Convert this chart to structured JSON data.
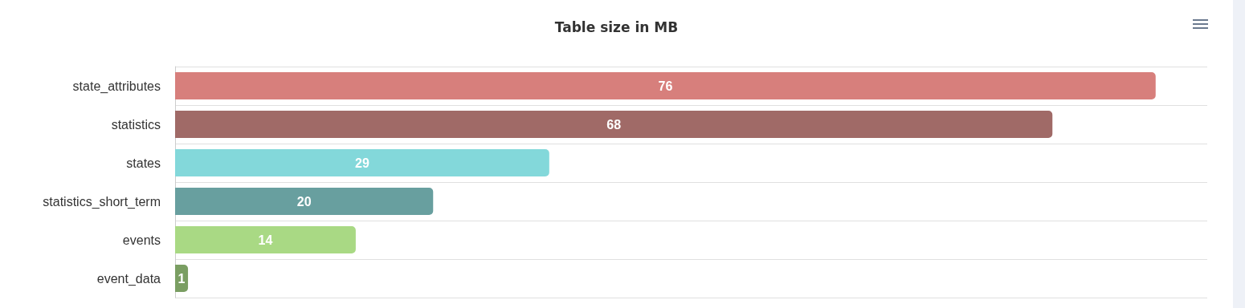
{
  "chart_data": {
    "type": "bar",
    "orientation": "horizontal",
    "title": "Table size in MB",
    "categories": [
      "state_attributes",
      "statistics",
      "states",
      "statistics_short_term",
      "events",
      "event_data"
    ],
    "values": [
      76,
      68,
      29,
      20,
      14,
      1
    ],
    "colors": [
      "#d77f7c",
      "#a06a67",
      "#83d8da",
      "#689f9f",
      "#a9d984",
      "#7a9e62"
    ],
    "xlim": [
      0,
      80
    ],
    "data_labels": true,
    "grid": "y",
    "tick_labels": "y"
  }
}
